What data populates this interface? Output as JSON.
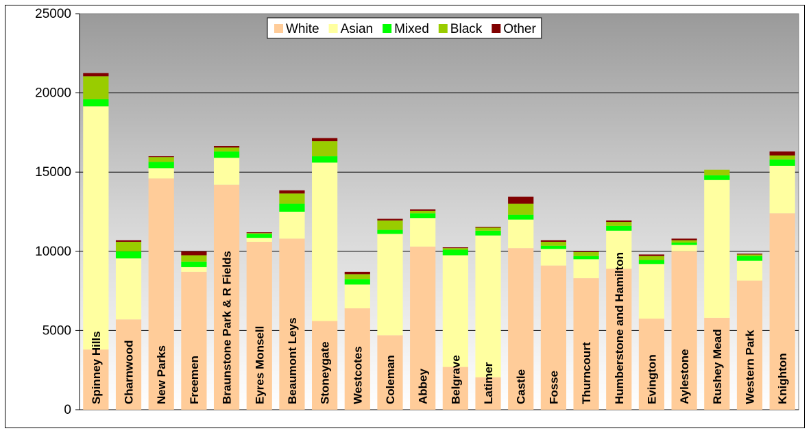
{
  "chart_data": {
    "type": "bar",
    "stacked": true,
    "title": "",
    "xlabel": "",
    "ylabel": "",
    "ylim": [
      0,
      25000
    ],
    "yticks": [
      0,
      5000,
      10000,
      15000,
      20000,
      25000
    ],
    "ytick_labels": [
      "0",
      "5000",
      "10000",
      "15000",
      "20000",
      "25000"
    ],
    "grid": true,
    "legend_position": "top-center",
    "categories": [
      "Spinney Hills",
      "Charnwood",
      "New Parks",
      "Freemen",
      "Braunstone Park & R Fields",
      "Eyres Monsell",
      "Beaumont Leys",
      "Stoneygate",
      "Westcotes",
      "Coleman",
      "Abbey",
      "Belgrave",
      "Latimer",
      "Castle",
      "Fosse",
      "Thurncourt",
      "Humberstone and Hamilton",
      "Evington",
      "Aylestone",
      "Rushey Mead",
      "Western Park",
      "Knighton"
    ],
    "series": [
      {
        "name": "White",
        "color": "#FFCC99",
        "values": [
          3800,
          5700,
          14600,
          8700,
          14200,
          10600,
          10800,
          5600,
          6400,
          4700,
          10300,
          2700,
          2050,
          10200,
          9100,
          8300,
          8900,
          5750,
          10000,
          5800,
          8150,
          12400
        ]
      },
      {
        "name": "Asian",
        "color": "#FFFFA0",
        "values": [
          15350,
          3850,
          650,
          300,
          1700,
          250,
          1700,
          10000,
          1500,
          6400,
          1800,
          7050,
          8950,
          1800,
          1050,
          1200,
          2400,
          3450,
          400,
          8700,
          1250,
          3000
        ]
      },
      {
        "name": "Mixed",
        "color": "#00FF00",
        "values": [
          450,
          450,
          400,
          350,
          400,
          250,
          500,
          400,
          350,
          250,
          300,
          350,
          300,
          300,
          200,
          200,
          300,
          250,
          150,
          300,
          300,
          400
        ]
      },
      {
        "name": "Black",
        "color": "#99CC00",
        "values": [
          1450,
          600,
          300,
          400,
          250,
          50,
          650,
          950,
          300,
          600,
          150,
          100,
          200,
          700,
          250,
          250,
          250,
          250,
          150,
          350,
          100,
          250
        ]
      },
      {
        "name": "Other",
        "color": "#800000",
        "values": [
          200,
          100,
          50,
          250,
          100,
          50,
          200,
          200,
          150,
          100,
          100,
          50,
          50,
          450,
          100,
          50,
          100,
          100,
          100,
          0,
          50,
          250
        ]
      }
    ]
  }
}
